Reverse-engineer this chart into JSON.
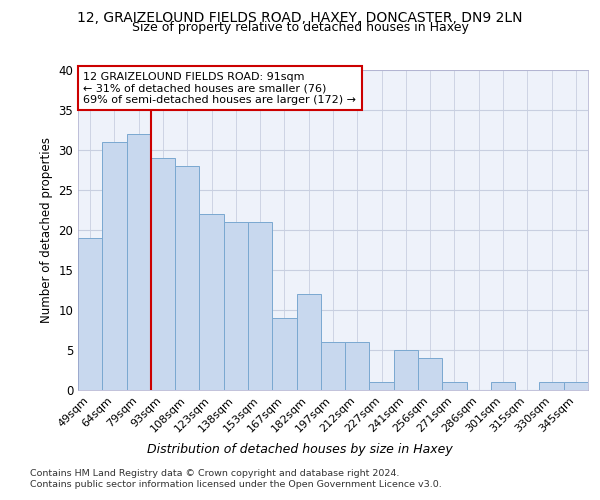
{
  "title_line1": "12, GRAIZELOUND FIELDS ROAD, HAXEY, DONCASTER, DN9 2LN",
  "title_line2": "Size of property relative to detached houses in Haxey",
  "xlabel": "Distribution of detached houses by size in Haxey",
  "ylabel": "Number of detached properties",
  "categories": [
    "49sqm",
    "64sqm",
    "79sqm",
    "93sqm",
    "108sqm",
    "123sqm",
    "138sqm",
    "153sqm",
    "167sqm",
    "182sqm",
    "197sqm",
    "212sqm",
    "227sqm",
    "241sqm",
    "256sqm",
    "271sqm",
    "286sqm",
    "301sqm",
    "315sqm",
    "330sqm",
    "345sqm"
  ],
  "values": [
    19,
    31,
    32,
    29,
    28,
    22,
    21,
    21,
    9,
    12,
    6,
    6,
    1,
    5,
    4,
    1,
    0,
    1,
    0,
    1,
    1
  ],
  "bar_color": "#c8d8ee",
  "bar_edge_color": "#7aa8d0",
  "annotation_text": "12 GRAIZELOUND FIELDS ROAD: 91sqm\n← 31% of detached houses are smaller (76)\n69% of semi-detached houses are larger (172) →",
  "annotation_box_color": "#ffffff",
  "annotation_box_edge_color": "#cc0000",
  "vline_color": "#cc0000",
  "vline_x": 2.5,
  "ylim": [
    0,
    40
  ],
  "yticks": [
    0,
    5,
    10,
    15,
    20,
    25,
    30,
    35,
    40
  ],
  "footnote_line1": "Contains HM Land Registry data © Crown copyright and database right 2024.",
  "footnote_line2": "Contains public sector information licensed under the Open Government Licence v3.0.",
  "bg_color": "#ffffff",
  "plot_bg_color": "#eef2fa",
  "grid_color": "#c8cfe0"
}
